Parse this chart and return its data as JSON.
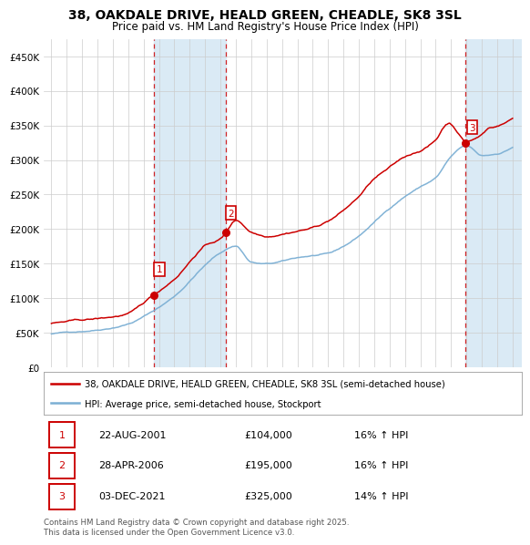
{
  "title": "38, OAKDALE DRIVE, HEALD GREEN, CHEADLE, SK8 3SL",
  "subtitle": "Price paid vs. HM Land Registry's House Price Index (HPI)",
  "purchase_dates": [
    "2001-08-22",
    "2006-04-28",
    "2021-12-03"
  ],
  "purchase_prices": [
    104000,
    195000,
    325000
  ],
  "purchase_labels": [
    "1",
    "2",
    "3"
  ],
  "legend_line1": "38, OAKDALE DRIVE, HEALD GREEN, CHEADLE, SK8 3SL (semi-detached house)",
  "legend_line2": "HPI: Average price, semi-detached house, Stockport",
  "line_color_red": "#cc0000",
  "line_color_blue": "#7bafd4",
  "shade_color": "#daeaf5",
  "vline_color": "#cc0000",
  "dot_color": "#cc0000",
  "label_box_color": "#cc0000",
  "grid_color": "#cccccc",
  "bg_color": "#ffffff",
  "ylim": [
    0,
    475000
  ],
  "yticks": [
    0,
    50000,
    100000,
    150000,
    200000,
    250000,
    300000,
    350000,
    400000,
    450000
  ],
  "ytick_labels": [
    "£0",
    "£50K",
    "£100K",
    "£150K",
    "£200K",
    "£250K",
    "£300K",
    "£350K",
    "£400K",
    "£450K"
  ],
  "footnote": "Contains HM Land Registry data © Crown copyright and database right 2025.\nThis data is licensed under the Open Government Licence v3.0.",
  "table_rows": [
    [
      "1",
      "22-AUG-2001",
      "£104,000",
      "16% ↑ HPI"
    ],
    [
      "2",
      "28-APR-2006",
      "£195,000",
      "16% ↑ HPI"
    ],
    [
      "3",
      "03-DEC-2021",
      "£325,000",
      "14% ↑ HPI"
    ]
  ],
  "hpi_keypoints_t": [
    0,
    1,
    3,
    5,
    6.5,
    8,
    10,
    11,
    12,
    13,
    14,
    15,
    16,
    17,
    18,
    19,
    20,
    21,
    22,
    23,
    24,
    25,
    26,
    27,
    28,
    29,
    30
  ],
  "hpi_keypoints_v": [
    48000,
    50000,
    55000,
    65000,
    82000,
    105000,
    150000,
    168000,
    178000,
    155000,
    152000,
    155000,
    160000,
    163000,
    165000,
    175000,
    190000,
    210000,
    230000,
    248000,
    262000,
    275000,
    305000,
    320000,
    305000,
    308000,
    318000
  ],
  "red_keypoints_t": [
    0,
    1,
    3,
    5,
    6.5,
    8,
    10,
    11,
    12,
    13,
    14,
    15,
    16,
    17,
    18,
    19,
    20,
    21,
    22,
    23,
    24,
    25,
    26,
    27,
    28,
    29,
    30
  ],
  "red_keypoints_v": [
    63000,
    65000,
    68000,
    75000,
    95000,
    125000,
    175000,
    190000,
    215000,
    195000,
    190000,
    195000,
    200000,
    205000,
    215000,
    230000,
    250000,
    275000,
    290000,
    305000,
    315000,
    330000,
    365000,
    355000,
    347000,
    352000,
    363000
  ]
}
